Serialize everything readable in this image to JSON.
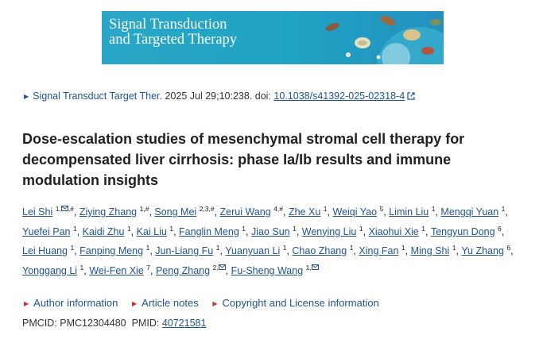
{
  "banner": {
    "line1": "Signal Transduction",
    "line2": "and Targeted Therapy"
  },
  "citation": {
    "journal": "Signal Transduct Target Ther.",
    "details": "2025 Jul 29;10:238. doi:",
    "doi": "10.1038/s41392-025-02318-4"
  },
  "article": {
    "title": "Dose-escalation studies of mesenchymal stromal cell therapy for decompensated liver cirrhosis: phase Ia/Ib results and immune modulation insights"
  },
  "authors": [
    {
      "name": "Lei Shi",
      "sup": "1,",
      "mail": true,
      "sup2": ",#",
      "sep": ", "
    },
    {
      "name": "Ziying Zhang",
      "sup": "1,#",
      "sep": ", "
    },
    {
      "name": "Song Mei",
      "sup": "2,3,#",
      "sep": ", "
    },
    {
      "name": "Zerui Wang",
      "sup": "4,#",
      "sep": ", "
    },
    {
      "name": "Zhe Xu",
      "sup": "1",
      "sep": ", "
    },
    {
      "name": "Weiqi Yao",
      "sup": "5",
      "sep": ", "
    },
    {
      "name": "Limin Liu",
      "sup": "1",
      "sep": ", "
    },
    {
      "name": "Mengqi Yuan",
      "sup": "1",
      "sep": ", "
    },
    {
      "name": "Yuefei Pan",
      "sup": "1",
      "sep": ", "
    },
    {
      "name": "Kaidi Zhu",
      "sup": "1",
      "sep": ", "
    },
    {
      "name": "Kai Liu",
      "sup": "1",
      "sep": ", "
    },
    {
      "name": "Fanglin Meng",
      "sup": "1",
      "sep": ", "
    },
    {
      "name": "Jiao Sun",
      "sup": "1",
      "sep": ", "
    },
    {
      "name": "Wenying Liu",
      "sup": "1",
      "sep": ", "
    },
    {
      "name": "Xiaohui Xie",
      "sup": "1",
      "sep": ", "
    },
    {
      "name": "Tengyun Dong",
      "sup": "6",
      "sep": ", "
    },
    {
      "name": "Lei Huang",
      "sup": "1",
      "sep": ", "
    },
    {
      "name": "Fanping Meng",
      "sup": "1",
      "sep": ", "
    },
    {
      "name": "Jun-Liang Fu",
      "sup": "1",
      "sep": ", "
    },
    {
      "name": "Yuanyuan Li",
      "sup": "1",
      "sep": ", "
    },
    {
      "name": "Chao Zhang",
      "sup": "1",
      "sep": ", "
    },
    {
      "name": "Xing Fan",
      "sup": "1",
      "sep": ", "
    },
    {
      "name": "Ming Shi",
      "sup": "1",
      "sep": ", "
    },
    {
      "name": "Yu Zhang",
      "sup": "6",
      "sep": ", "
    },
    {
      "name": "Yonggang Li",
      "sup": "1",
      "sep": ", "
    },
    {
      "name": "Wei-Fen Xie",
      "sup": "7",
      "sep": ", "
    },
    {
      "name": "Peng Zhang",
      "sup": "2,",
      "mail": true,
      "sup2": "",
      "sep": ", "
    },
    {
      "name": "Fu-Sheng Wang",
      "sup": "1,",
      "mail": true,
      "sup2": "",
      "sep": ""
    }
  ],
  "info_links": [
    "Author information",
    "Article notes",
    "Copyright and License information"
  ],
  "ids": {
    "pmcid_label": "PMCID:",
    "pmcid": "PMC12304480",
    "pmid_label": "PMID:",
    "pmid": "40721581"
  },
  "icons": {
    "citation_arrow": "triangle-right-icon",
    "info_arrow": "triangle-right-icon",
    "external_link": "external-link-icon",
    "email": "envelope-icon"
  },
  "colors": {
    "link": "#205493",
    "banner": "#1fa3c4",
    "info_arrow": "#c9302c"
  }
}
